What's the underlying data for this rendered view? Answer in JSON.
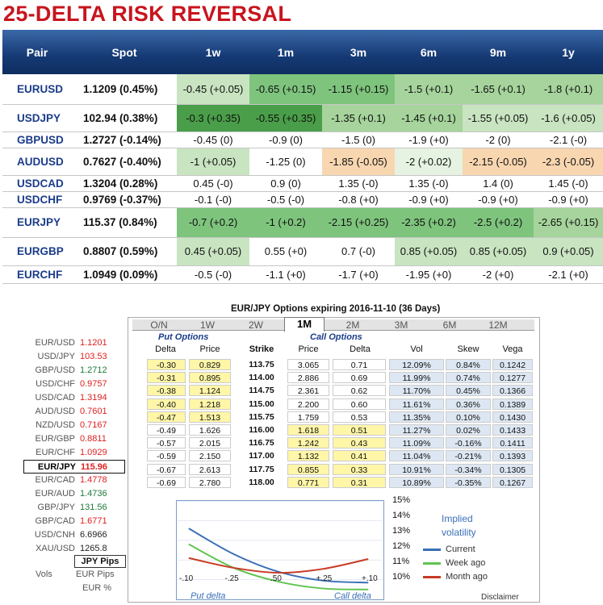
{
  "title": "25-DELTA RISK REVERSAL",
  "rr": {
    "headers": [
      "Pair",
      "Spot",
      "1w",
      "1m",
      "3m",
      "6m",
      "9m",
      "1y"
    ],
    "rows": [
      {
        "pair": "EURUSD",
        "spot": "1.1209 (0.45%)",
        "cells": [
          {
            "t": "-0.45 (+0.05)",
            "c": "#c9e4c1"
          },
          {
            "t": "-0.65 (+0.15)",
            "c": "#7ec47d"
          },
          {
            "t": "-1.15 (+0.15)",
            "c": "#7ec47d"
          },
          {
            "t": "-1.5 (+0.1)",
            "c": "#a6d49c"
          },
          {
            "t": "-1.65 (+0.1)",
            "c": "#a6d49c"
          },
          {
            "t": "-1.8 (+0.1)",
            "c": "#a6d49c"
          }
        ]
      },
      {
        "pair": "USDJPY",
        "spot": "102.94 (0.38%)",
        "cells": [
          {
            "t": "-0.3 (+0.35)",
            "c": "#4a9e49"
          },
          {
            "t": "-0.55 (+0.35)",
            "c": "#4a9e49"
          },
          {
            "t": "-1.35 (+0.1)",
            "c": "#a6d49c"
          },
          {
            "t": "-1.45 (+0.1)",
            "c": "#a6d49c"
          },
          {
            "t": "-1.55 (+0.05)",
            "c": "#c9e4c1"
          },
          {
            "t": "-1.6 (+0.05)",
            "c": "#c9e4c1"
          }
        ]
      },
      {
        "pair": "GBPUSD",
        "spot": "1.2727 (-0.14%)",
        "cells": [
          {
            "t": "-0.45 (0)",
            "c": "#ffffff"
          },
          {
            "t": "-0.9 (0)",
            "c": "#ffffff"
          },
          {
            "t": "-1.5 (0)",
            "c": "#ffffff"
          },
          {
            "t": "-1.9 (+0)",
            "c": "#ffffff"
          },
          {
            "t": "-2 (0)",
            "c": "#ffffff"
          },
          {
            "t": "-2.1 (-0)",
            "c": "#ffffff"
          }
        ]
      },
      {
        "pair": "AUDUSD",
        "spot": "0.7627 (-0.40%)",
        "cells": [
          {
            "t": "-1 (+0.05)",
            "c": "#c9e4c1"
          },
          {
            "t": "-1.25 (0)",
            "c": "#ffffff"
          },
          {
            "t": "-1.85 (-0.05)",
            "c": "#f8d6b0"
          },
          {
            "t": "-2 (+0.02)",
            "c": "#e6f3e2"
          },
          {
            "t": "-2.15 (-0.05)",
            "c": "#f8d6b0"
          },
          {
            "t": "-2.3 (-0.05)",
            "c": "#f8d6b0"
          }
        ]
      },
      {
        "pair": "USDCAD",
        "spot": "1.3204 (0.28%)",
        "cells": [
          {
            "t": "0.45 (-0)",
            "c": "#ffffff"
          },
          {
            "t": "0.9 (0)",
            "c": "#ffffff"
          },
          {
            "t": "1.35 (-0)",
            "c": "#ffffff"
          },
          {
            "t": "1.35 (-0)",
            "c": "#ffffff"
          },
          {
            "t": "1.4 (0)",
            "c": "#ffffff"
          },
          {
            "t": "1.45 (-0)",
            "c": "#ffffff"
          }
        ]
      },
      {
        "pair": "USDCHF",
        "spot": "0.9769 (-0.37%)",
        "cells": [
          {
            "t": "-0.1 (-0)",
            "c": "#ffffff"
          },
          {
            "t": "-0.5 (-0)",
            "c": "#ffffff"
          },
          {
            "t": "-0.8 (+0)",
            "c": "#ffffff"
          },
          {
            "t": "-0.9 (+0)",
            "c": "#ffffff"
          },
          {
            "t": "-0.9 (+0)",
            "c": "#ffffff"
          },
          {
            "t": "-0.9 (+0)",
            "c": "#ffffff"
          }
        ]
      },
      {
        "pair": "EURJPY",
        "spot": "115.37 (0.84%)",
        "cells": [
          {
            "t": "-0.7 (+0.2)",
            "c": "#7ec47d"
          },
          {
            "t": "-1 (+0.2)",
            "c": "#7ec47d"
          },
          {
            "t": "-2.15 (+0.25)",
            "c": "#7ec47d"
          },
          {
            "t": "-2.35 (+0.2)",
            "c": "#7ec47d"
          },
          {
            "t": "-2.5 (+0.2)",
            "c": "#7ec47d"
          },
          {
            "t": "-2.65 (+0.15)",
            "c": "#a6d49c"
          }
        ]
      },
      {
        "pair": "EURGBP",
        "spot": "0.8807 (0.59%)",
        "cells": [
          {
            "t": "0.45 (+0.05)",
            "c": "#c9e4c1"
          },
          {
            "t": "0.55 (+0)",
            "c": "#ffffff"
          },
          {
            "t": "0.7 (-0)",
            "c": "#ffffff"
          },
          {
            "t": "0.85 (+0.05)",
            "c": "#c9e4c1"
          },
          {
            "t": "0.85 (+0.05)",
            "c": "#c9e4c1"
          },
          {
            "t": "0.9 (+0.05)",
            "c": "#c9e4c1"
          }
        ]
      },
      {
        "pair": "EURCHF",
        "spot": "1.0949 (0.09%)",
        "cells": [
          {
            "t": "-0.5 (-0)",
            "c": "#ffffff"
          },
          {
            "t": "-1.1 (+0)",
            "c": "#ffffff"
          },
          {
            "t": "-1.7 (+0)",
            "c": "#ffffff"
          },
          {
            "t": "-1.95 (+0)",
            "c": "#ffffff"
          },
          {
            "t": "-2 (+0)",
            "c": "#ffffff"
          },
          {
            "t": "-2.1 (+0)",
            "c": "#ffffff"
          }
        ]
      }
    ]
  },
  "options": {
    "title": "EUR/JPY Options expiring 2016-11-10 (36 Days)",
    "tabs": [
      "O/N",
      "1W",
      "2W",
      "1M",
      "2M",
      "3M",
      "6M",
      "12M"
    ],
    "active_tab": "1M",
    "put_group": "Put Options",
    "call_group": "Call Options",
    "col_headers": {
      "put_delta": "Delta",
      "put_price": "Price",
      "strike": "Strike",
      "call_price": "Price",
      "call_delta": "Delta",
      "vol": "Vol",
      "skew": "Skew",
      "vega": "Vega"
    },
    "rows": [
      {
        "pd": "-0.30",
        "pp": "0.829",
        "k": "113.75",
        "cp": "3.065",
        "cd": "0.71",
        "vol": "12.09%",
        "skew": "0.84%",
        "vega": "0.1242",
        "put_itm": true,
        "call_itm": false
      },
      {
        "pd": "-0.31",
        "pp": "0.895",
        "k": "114.00",
        "cp": "2.886",
        "cd": "0.69",
        "vol": "11.99%",
        "skew": "0.74%",
        "vega": "0.1277",
        "put_itm": true,
        "call_itm": false
      },
      {
        "pd": "-0.38",
        "pp": "1.124",
        "k": "114.75",
        "cp": "2.361",
        "cd": "0.62",
        "vol": "11.70%",
        "skew": "0.45%",
        "vega": "0.1366",
        "put_itm": true,
        "call_itm": false
      },
      {
        "pd": "-0.40",
        "pp": "1.218",
        "k": "115.00",
        "cp": "2.200",
        "cd": "0.60",
        "vol": "11.61%",
        "skew": "0.36%",
        "vega": "0.1389",
        "put_itm": true,
        "call_itm": false
      },
      {
        "pd": "-0.47",
        "pp": "1.513",
        "k": "115.75",
        "cp": "1.759",
        "cd": "0.53",
        "vol": "11.35%",
        "skew": "0.10%",
        "vega": "0.1430",
        "put_itm": true,
        "call_itm": false
      },
      {
        "pd": "-0.49",
        "pp": "1.626",
        "k": "116.00",
        "cp": "1.618",
        "cd": "0.51",
        "vol": "11.27%",
        "skew": "0.02%",
        "vega": "0.1433",
        "put_itm": false,
        "call_itm": true
      },
      {
        "pd": "-0.57",
        "pp": "2.015",
        "k": "116.75",
        "cp": "1.242",
        "cd": "0.43",
        "vol": "11.09%",
        "skew": "-0.16%",
        "vega": "0.1411",
        "put_itm": false,
        "call_itm": true
      },
      {
        "pd": "-0.59",
        "pp": "2.150",
        "k": "117.00",
        "cp": "1.132",
        "cd": "0.41",
        "vol": "11.04%",
        "skew": "-0.21%",
        "vega": "0.1393",
        "put_itm": false,
        "call_itm": true
      },
      {
        "pd": "-0.67",
        "pp": "2.613",
        "k": "117.75",
        "cp": "0.855",
        "cd": "0.33",
        "vol": "10.91%",
        "skew": "-0.34%",
        "vega": "0.1305",
        "put_itm": false,
        "call_itm": true
      },
      {
        "pd": "-0.69",
        "pp": "2.780",
        "k": "118.00",
        "cp": "0.771",
        "cd": "0.31",
        "vol": "10.89%",
        "skew": "-0.35%",
        "vega": "0.1267",
        "put_itm": false,
        "call_itm": true
      }
    ]
  },
  "spots": [
    {
      "pair": "EUR/USD",
      "val": "1.1201",
      "color": "red"
    },
    {
      "pair": "USD/JPY",
      "val": "103.53",
      "color": "red"
    },
    {
      "pair": "GBP/USD",
      "val": "1.2712",
      "color": "grn"
    },
    {
      "pair": "USD/CHF",
      "val": "0.9757",
      "color": "red"
    },
    {
      "pair": "USD/CAD",
      "val": "1.3194",
      "color": "red"
    },
    {
      "pair": "AUD/USD",
      "val": "0.7601",
      "color": "red"
    },
    {
      "pair": "NZD/USD",
      "val": "0.7167",
      "color": "red"
    },
    {
      "pair": "EUR/GBP",
      "val": "0.8811",
      "color": "red"
    },
    {
      "pair": "EUR/CHF",
      "val": "1.0929",
      "color": "red"
    },
    {
      "pair": "EUR/JPY",
      "val": "115.96",
      "color": "red",
      "selected": true
    },
    {
      "pair": "EUR/CAD",
      "val": "1.4778",
      "color": "red"
    },
    {
      "pair": "EUR/AUD",
      "val": "1.4736",
      "color": "grn"
    },
    {
      "pair": "GBP/JPY",
      "val": "131.56",
      "color": "grn"
    },
    {
      "pair": "GBP/CAD",
      "val": "1.6771",
      "color": "red"
    },
    {
      "pair": "USD/CNH",
      "val": "6.6966",
      "color": "blk"
    },
    {
      "pair": "XAU/USD",
      "val": "1265.8",
      "color": "blk"
    }
  ],
  "unit_selector": {
    "label": "Vols",
    "selected": "JPY Pips",
    "options": [
      "EUR Pips",
      "EUR %"
    ]
  },
  "chart_data": {
    "type": "line",
    "title": "Implied volatility",
    "x": [
      -0.1,
      -0.25,
      0.5,
      0.25,
      0.1
    ],
    "x_ticks": [
      "-.10",
      "-.25",
      ".50",
      "+.25",
      "+.10"
    ],
    "xlabel_left": "Put delta",
    "xlabel_right": "Call delta",
    "y_ticks": [
      "15%",
      "14%",
      "13%",
      "12%",
      "11%",
      "10%"
    ],
    "ylim": [
      10,
      15
    ],
    "series": [
      {
        "name": "Current",
        "color": "#3a6fb8",
        "values": [
          13.6,
          12.3,
          11.4,
          10.95,
          10.85
        ]
      },
      {
        "name": "Week ago",
        "color": "#5fc44f",
        "values": [
          12.8,
          11.6,
          10.9,
          10.55,
          10.5
        ]
      },
      {
        "name": "Month ago",
        "color": "#c83a24",
        "values": [
          12.1,
          11.6,
          11.35,
          11.55,
          12.05
        ]
      }
    ]
  },
  "disclaimer": "Disclaimer"
}
